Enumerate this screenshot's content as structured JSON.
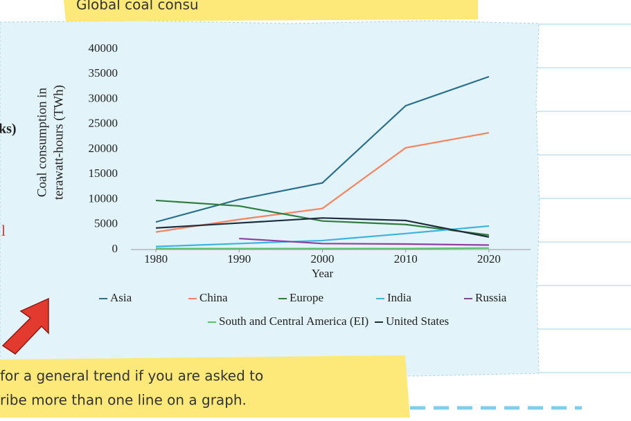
{
  "top_note": "Global coal consu",
  "side_text": "ks)",
  "side_mark": "l",
  "bottom_note": [
    "for a general trend if you are asked to",
    "ribe more than one line on a graph."
  ],
  "chart_data": {
    "type": "line",
    "ylabel": [
      "Coal consumption in",
      "terawatt-hours (TWh)"
    ],
    "xlabel": "Year",
    "x": [
      1980,
      1990,
      2000,
      2010,
      2020
    ],
    "xlim": [
      1977,
      2025
    ],
    "xticks": [
      1980,
      1990,
      2000,
      2010,
      2020
    ],
    "ylim": [
      0,
      40000
    ],
    "yticks": [
      0,
      5000,
      10000,
      15000,
      20000,
      25000,
      30000,
      35000,
      40000
    ],
    "grid": false,
    "legend": "bottom",
    "series": [
      {
        "name": "Asia",
        "color": "#2a6f8c",
        "values": [
          5500,
          10000,
          13300,
          28700,
          34500
        ]
      },
      {
        "name": "China",
        "color": "#f4845f",
        "values": [
          3500,
          6000,
          8200,
          20300,
          23300
        ]
      },
      {
        "name": "Europe",
        "color": "#2e7d3e",
        "values": [
          9800,
          8700,
          5700,
          5000,
          2900
        ]
      },
      {
        "name": "India",
        "color": "#3bb3e0",
        "values": [
          600,
          1200,
          1800,
          3200,
          4700
        ]
      },
      {
        "name": "Russia",
        "color": "#8e3fa0",
        "values": [
          null,
          2200,
          1200,
          1100,
          900
        ]
      },
      {
        "name": "South and Central America (EI)",
        "color": "#5cbf6c",
        "values": [
          200,
          200,
          200,
          200,
          300
        ]
      },
      {
        "name": "United States",
        "color": "#1d2b3a",
        "values": [
          4300,
          5300,
          6300,
          5800,
          2500
        ]
      }
    ]
  }
}
